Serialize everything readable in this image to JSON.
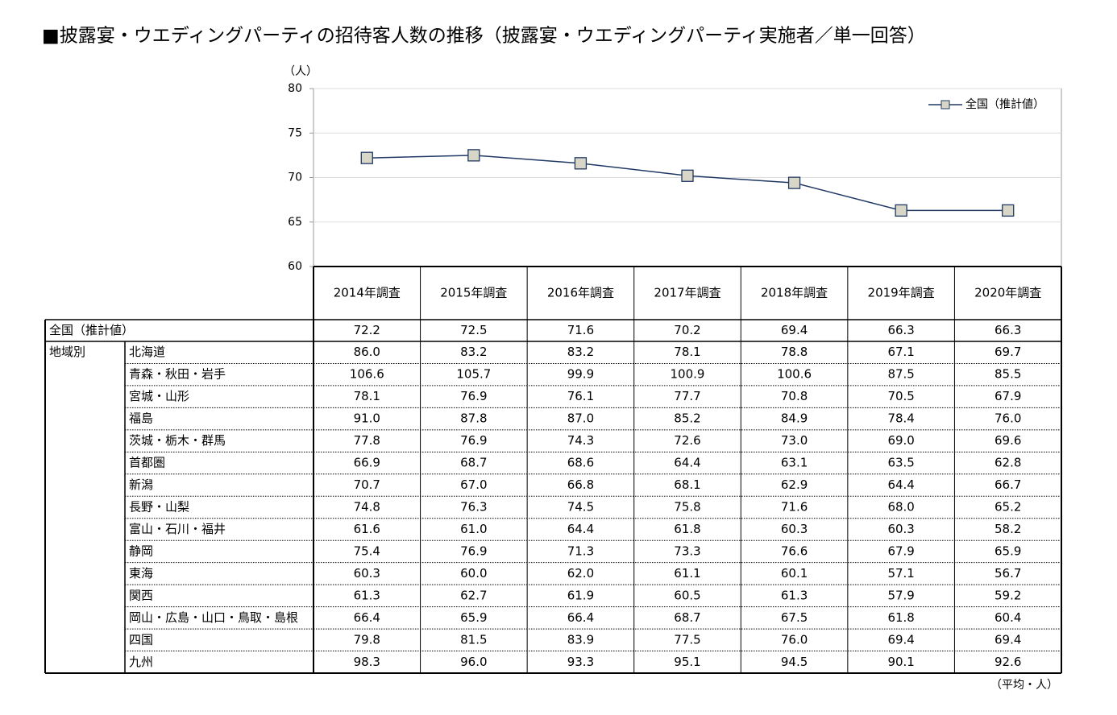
{
  "chart_data": {
    "type": "line",
    "title": "■披露宴・ウエディングパーティの招待客人数の推移（披露宴・ウエディングパーティ実施者／単一回答）",
    "y_unit": "（人）",
    "categories": [
      "2014年調査",
      "2015年調査",
      "2016年調査",
      "2017年調査",
      "2018年調査",
      "2019年調査",
      "2020年調査"
    ],
    "series": [
      {
        "name": "全国（推計値）",
        "color": "#1f3864",
        "marker_fill": "#d8d6c6",
        "values": [
          72.2,
          72.5,
          71.6,
          70.2,
          69.4,
          66.3,
          66.3
        ]
      }
    ],
    "ylim": [
      60,
      80
    ],
    "yticks": [
      60,
      65,
      70,
      75,
      80
    ],
    "grid": true,
    "legend": "top-right",
    "table": {
      "group_label": "地域別",
      "unit_note": "（平均・人）",
      "rows": [
        {
          "name": "北海道",
          "values": [
            "86.0",
            "83.2",
            "83.2",
            "78.1",
            "78.8",
            "67.1",
            "69.7"
          ]
        },
        {
          "name": "青森・秋田・岩手",
          "values": [
            "106.6",
            "105.7",
            "99.9",
            "100.9",
            "100.6",
            "87.5",
            "85.5"
          ]
        },
        {
          "name": "宮城・山形",
          "values": [
            "78.1",
            "76.9",
            "76.1",
            "77.7",
            "70.8",
            "70.5",
            "67.9"
          ]
        },
        {
          "name": "福島",
          "values": [
            "91.0",
            "87.8",
            "87.0",
            "85.2",
            "84.9",
            "78.4",
            "76.0"
          ]
        },
        {
          "name": "茨城・栃木・群馬",
          "values": [
            "77.8",
            "76.9",
            "74.3",
            "72.6",
            "73.0",
            "69.0",
            "69.6"
          ]
        },
        {
          "name": "首都圏",
          "values": [
            "66.9",
            "68.7",
            "68.6",
            "64.4",
            "63.1",
            "63.5",
            "62.8"
          ]
        },
        {
          "name": "新潟",
          "values": [
            "70.7",
            "67.0",
            "66.8",
            "68.1",
            "62.9",
            "64.4",
            "66.7"
          ]
        },
        {
          "name": "長野・山梨",
          "values": [
            "74.8",
            "76.3",
            "74.5",
            "75.8",
            "71.6",
            "68.0",
            "65.2"
          ]
        },
        {
          "name": "富山・石川・福井",
          "values": [
            "61.6",
            "61.0",
            "64.4",
            "61.8",
            "60.3",
            "60.3",
            "58.2"
          ]
        },
        {
          "name": "静岡",
          "values": [
            "75.4",
            "76.9",
            "71.3",
            "73.3",
            "76.6",
            "67.9",
            "65.9"
          ]
        },
        {
          "name": "東海",
          "values": [
            "60.3",
            "60.0",
            "62.0",
            "61.1",
            "60.1",
            "57.1",
            "56.7"
          ]
        },
        {
          "name": "関西",
          "values": [
            "61.3",
            "62.7",
            "61.9",
            "60.5",
            "61.3",
            "57.9",
            "59.2"
          ]
        },
        {
          "name": "岡山・広島・山口・鳥取・島根",
          "values": [
            "66.4",
            "65.9",
            "66.4",
            "68.7",
            "67.5",
            "61.8",
            "60.4"
          ]
        },
        {
          "name": "四国",
          "values": [
            "79.8",
            "81.5",
            "83.9",
            "77.5",
            "76.0",
            "69.4",
            "69.4"
          ]
        },
        {
          "name": "九州",
          "values": [
            "98.3",
            "96.0",
            "93.3",
            "95.1",
            "94.5",
            "90.1",
            "92.6"
          ]
        }
      ]
    }
  }
}
